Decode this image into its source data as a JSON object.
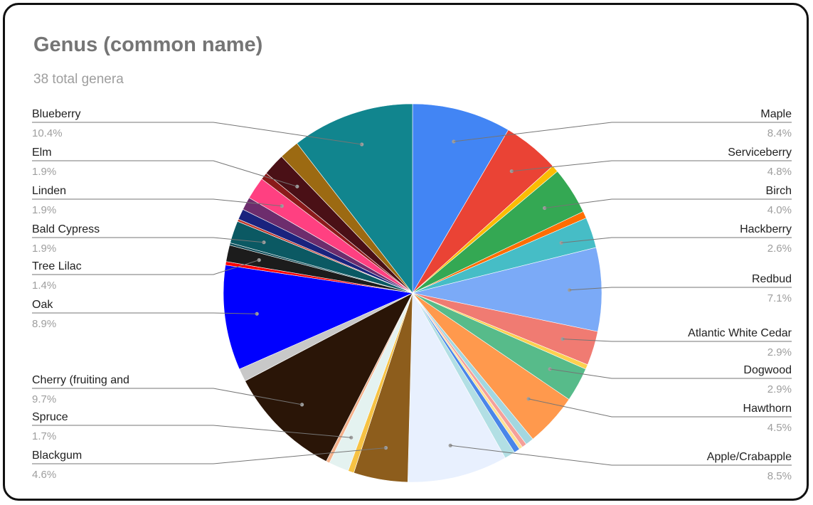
{
  "chart_data": {
    "type": "pie",
    "title": "Genus (common name)",
    "subtitle": "38 total genera",
    "slices": [
      {
        "label": "Maple",
        "value": 8.4,
        "color": "#4285f4",
        "display_label": "Maple",
        "pct_label": "8.4%",
        "side": "right"
      },
      {
        "label": "Serviceberry",
        "value": 4.8,
        "color": "#ea4335",
        "display_label": "Serviceberry",
        "pct_label": "4.8%",
        "side": "right"
      },
      {
        "label": "",
        "value": 0.6,
        "color": "#fbbc04"
      },
      {
        "label": "Birch",
        "value": 4.0,
        "color": "#34a853",
        "display_label": "Birch",
        "pct_label": "4.0%",
        "side": "right"
      },
      {
        "label": "",
        "value": 0.6,
        "color": "#ff6d01"
      },
      {
        "label": "Hackberry",
        "value": 2.6,
        "color": "#46bdc6",
        "display_label": "Hackberry",
        "pct_label": "2.6%",
        "side": "right"
      },
      {
        "label": "Redbud",
        "value": 7.1,
        "color": "#7baaf7",
        "display_label": "Redbud",
        "pct_label": "7.1%",
        "side": "right"
      },
      {
        "label": "Atlantic White Cedar",
        "value": 2.9,
        "color": "#f07b72",
        "display_label": "Atlantic White Cedar",
        "pct_label": "2.9%",
        "side": "right"
      },
      {
        "label": "",
        "value": 0.4,
        "color": "#fcd04f"
      },
      {
        "label": "Dogwood",
        "value": 2.9,
        "color": "#57bb8a",
        "display_label": "Dogwood",
        "pct_label": "2.9%",
        "side": "right"
      },
      {
        "label": "Hawthorn",
        "value": 4.5,
        "color": "#ff994d",
        "display_label": "Hawthorn",
        "pct_label": "4.5%",
        "side": "right"
      },
      {
        "label": "",
        "value": 0.7,
        "color": "#a3d7e0"
      },
      {
        "label": "",
        "value": 0.4,
        "color": "#f5a09a"
      },
      {
        "label": "",
        "value": 0.3,
        "color": "#fde293"
      },
      {
        "label": "",
        "value": 0.5,
        "color": "#4a86e8"
      },
      {
        "label": "",
        "value": 0.9,
        "color": "#b2dfe4"
      },
      {
        "label": "Apple/Crabapple",
        "value": 8.5,
        "color": "#e8f0fe",
        "display_label": "Apple/Crabapple",
        "pct_label": "8.5%",
        "side": "right"
      },
      {
        "label": "Blackgum",
        "value": 4.6,
        "color": "#8d5d1c",
        "display_label": "Blackgum",
        "pct_label": "4.6%",
        "side": "left"
      },
      {
        "label": "",
        "value": 0.5,
        "color": "#f6c244"
      },
      {
        "label": "Spruce",
        "value": 1.7,
        "color": "#e4f2f0",
        "display_label": "Spruce",
        "pct_label": "1.7%",
        "side": "left"
      },
      {
        "label": "",
        "value": 0.3,
        "color": "#f3b08a"
      },
      {
        "label": "Cherry (fruiting and",
        "value": 9.7,
        "color": "#2a1507",
        "display_label": "Cherry (fruiting and",
        "pct_label": "9.7%",
        "side": "left"
      },
      {
        "label": "",
        "value": 1.1,
        "color": "#c8c8c8"
      },
      {
        "label": "Oak",
        "value": 8.9,
        "color": "#0000ff",
        "display_label": "Oak",
        "pct_label": "8.9%",
        "side": "left"
      },
      {
        "label": "",
        "value": 0.3,
        "color": "#ff0000"
      },
      {
        "label": "Tree Lilac",
        "value": 1.4,
        "color": "#1c1c1c",
        "display_label": "Tree Lilac",
        "pct_label": "1.4%",
        "side": "left"
      },
      {
        "label": "",
        "value": 0.2,
        "color": "#134f5c"
      },
      {
        "label": "Bald Cypress",
        "value": 1.9,
        "color": "#0b5963",
        "display_label": "Bald Cypress",
        "pct_label": "1.9%",
        "side": "left"
      },
      {
        "label": "",
        "value": 0.2,
        "color": "#c0392b"
      },
      {
        "label": "",
        "value": 0.9,
        "color": "#1a237e"
      },
      {
        "label": "",
        "value": 1.1,
        "color": "#6d2d6d"
      },
      {
        "label": "Linden",
        "value": 1.9,
        "color": "#ff4081",
        "display_label": "Linden",
        "pct_label": "1.9%",
        "side": "left"
      },
      {
        "label": "",
        "value": 0.6,
        "color": "#8b1a1a"
      },
      {
        "label": "Elm",
        "value": 1.9,
        "color": "#4a1016",
        "display_label": "Elm",
        "pct_label": "1.9%",
        "side": "left"
      },
      {
        "label": "",
        "value": 1.7,
        "color": "#9c6a12"
      },
      {
        "label": "Blueberry",
        "value": 10.4,
        "color": "#11858e",
        "display_label": "Blueberry",
        "pct_label": "10.4%",
        "side": "left"
      }
    ]
  }
}
